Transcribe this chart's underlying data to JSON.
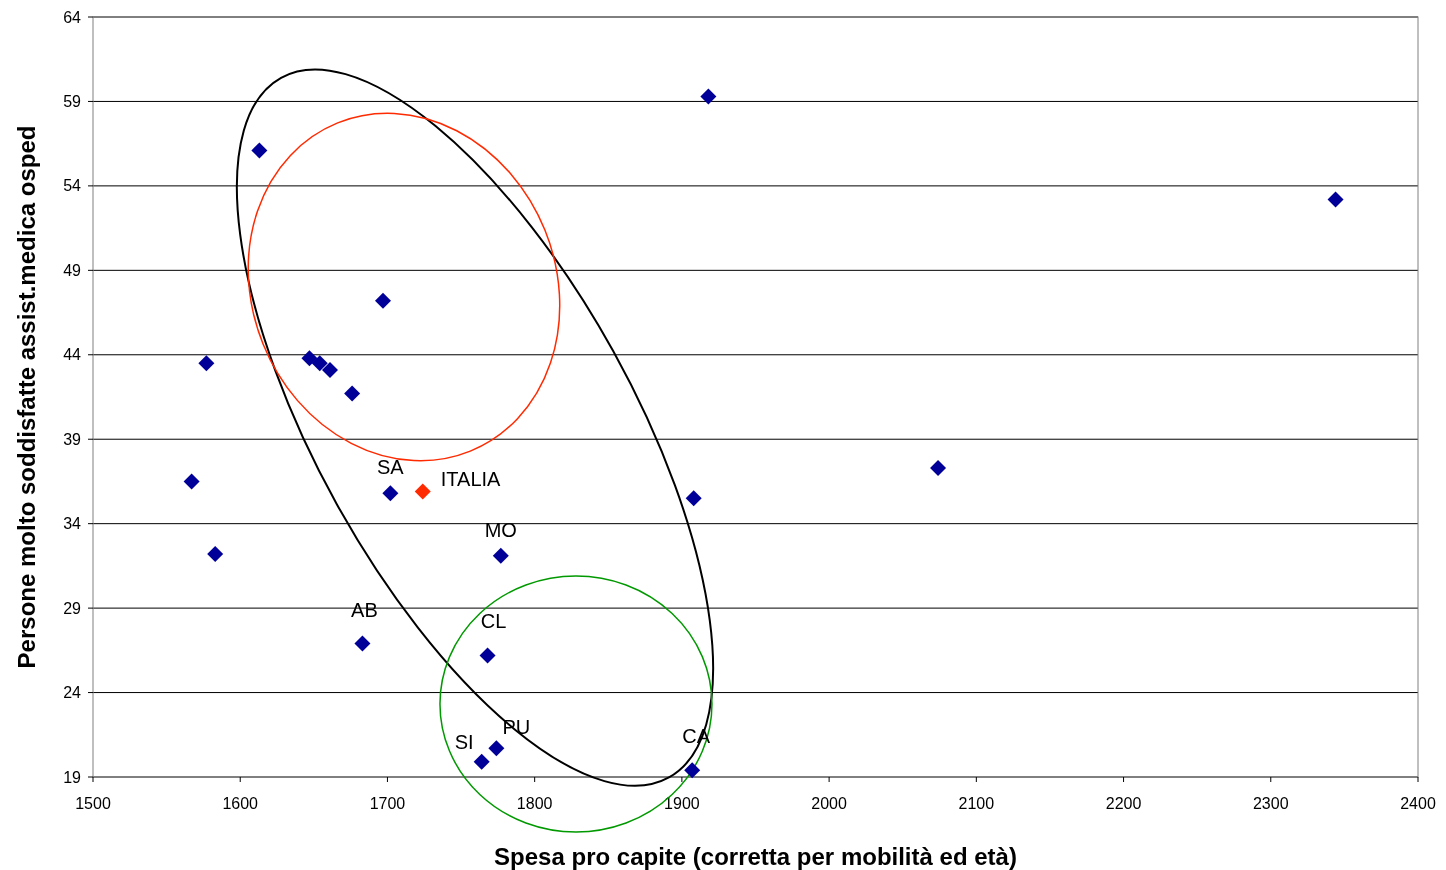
{
  "chart_data": {
    "type": "scatter",
    "xlabel": "Spesa pro capite (corretta per mobilità ed età)",
    "ylabel": "Persone molto soddisfatte assist.medica osped",
    "xlim": [
      1500,
      2400
    ],
    "xticks": [
      1500,
      1600,
      1700,
      1800,
      1900,
      2000,
      2100,
      2200,
      2300,
      2400
    ],
    "ylim": [
      19,
      64
    ],
    "yticks": [
      19,
      24,
      29,
      34,
      39,
      44,
      49,
      54,
      59,
      64
    ],
    "grid": "y",
    "marker": "diamond",
    "series": [
      {
        "color": "#000099",
        "x": [
          1613,
          1918,
          2344,
          1697,
          1577,
          1647,
          1654,
          1661,
          1676,
          1567,
          1583,
          1702,
          1908,
          2074,
          1777,
          1683,
          1768,
          1774,
          1764,
          1907
        ],
        "values": [
          56.1,
          59.3,
          53.2,
          47.2,
          43.5,
          43.8,
          43.5,
          43.1,
          41.7,
          36.5,
          32.2,
          35.8,
          35.5,
          37.3,
          32.1,
          26.9,
          26.2,
          20.7,
          19.9,
          19.4
        ]
      },
      {
        "color": "#ff2a00",
        "x": [
          1724
        ],
        "values": [
          35.9
        ]
      }
    ],
    "annotations": [
      {
        "text": "SA",
        "x": 1702,
        "y": 35.8
      },
      {
        "text": "ITALIA",
        "x": 1724,
        "y": 35.9
      },
      {
        "text": "MO",
        "x": 1777,
        "y": 32.1
      },
      {
        "text": "AB",
        "x": 1683,
        "y": 26.9
      },
      {
        "text": "CL",
        "x": 1768,
        "y": 26.2
      },
      {
        "text": "PU",
        "x": 1774,
        "y": 20.7
      },
      {
        "text": "SI",
        "x": 1764,
        "y": 19.9
      },
      {
        "text": "CA",
        "x": 1907,
        "y": 19.4
      }
    ]
  }
}
